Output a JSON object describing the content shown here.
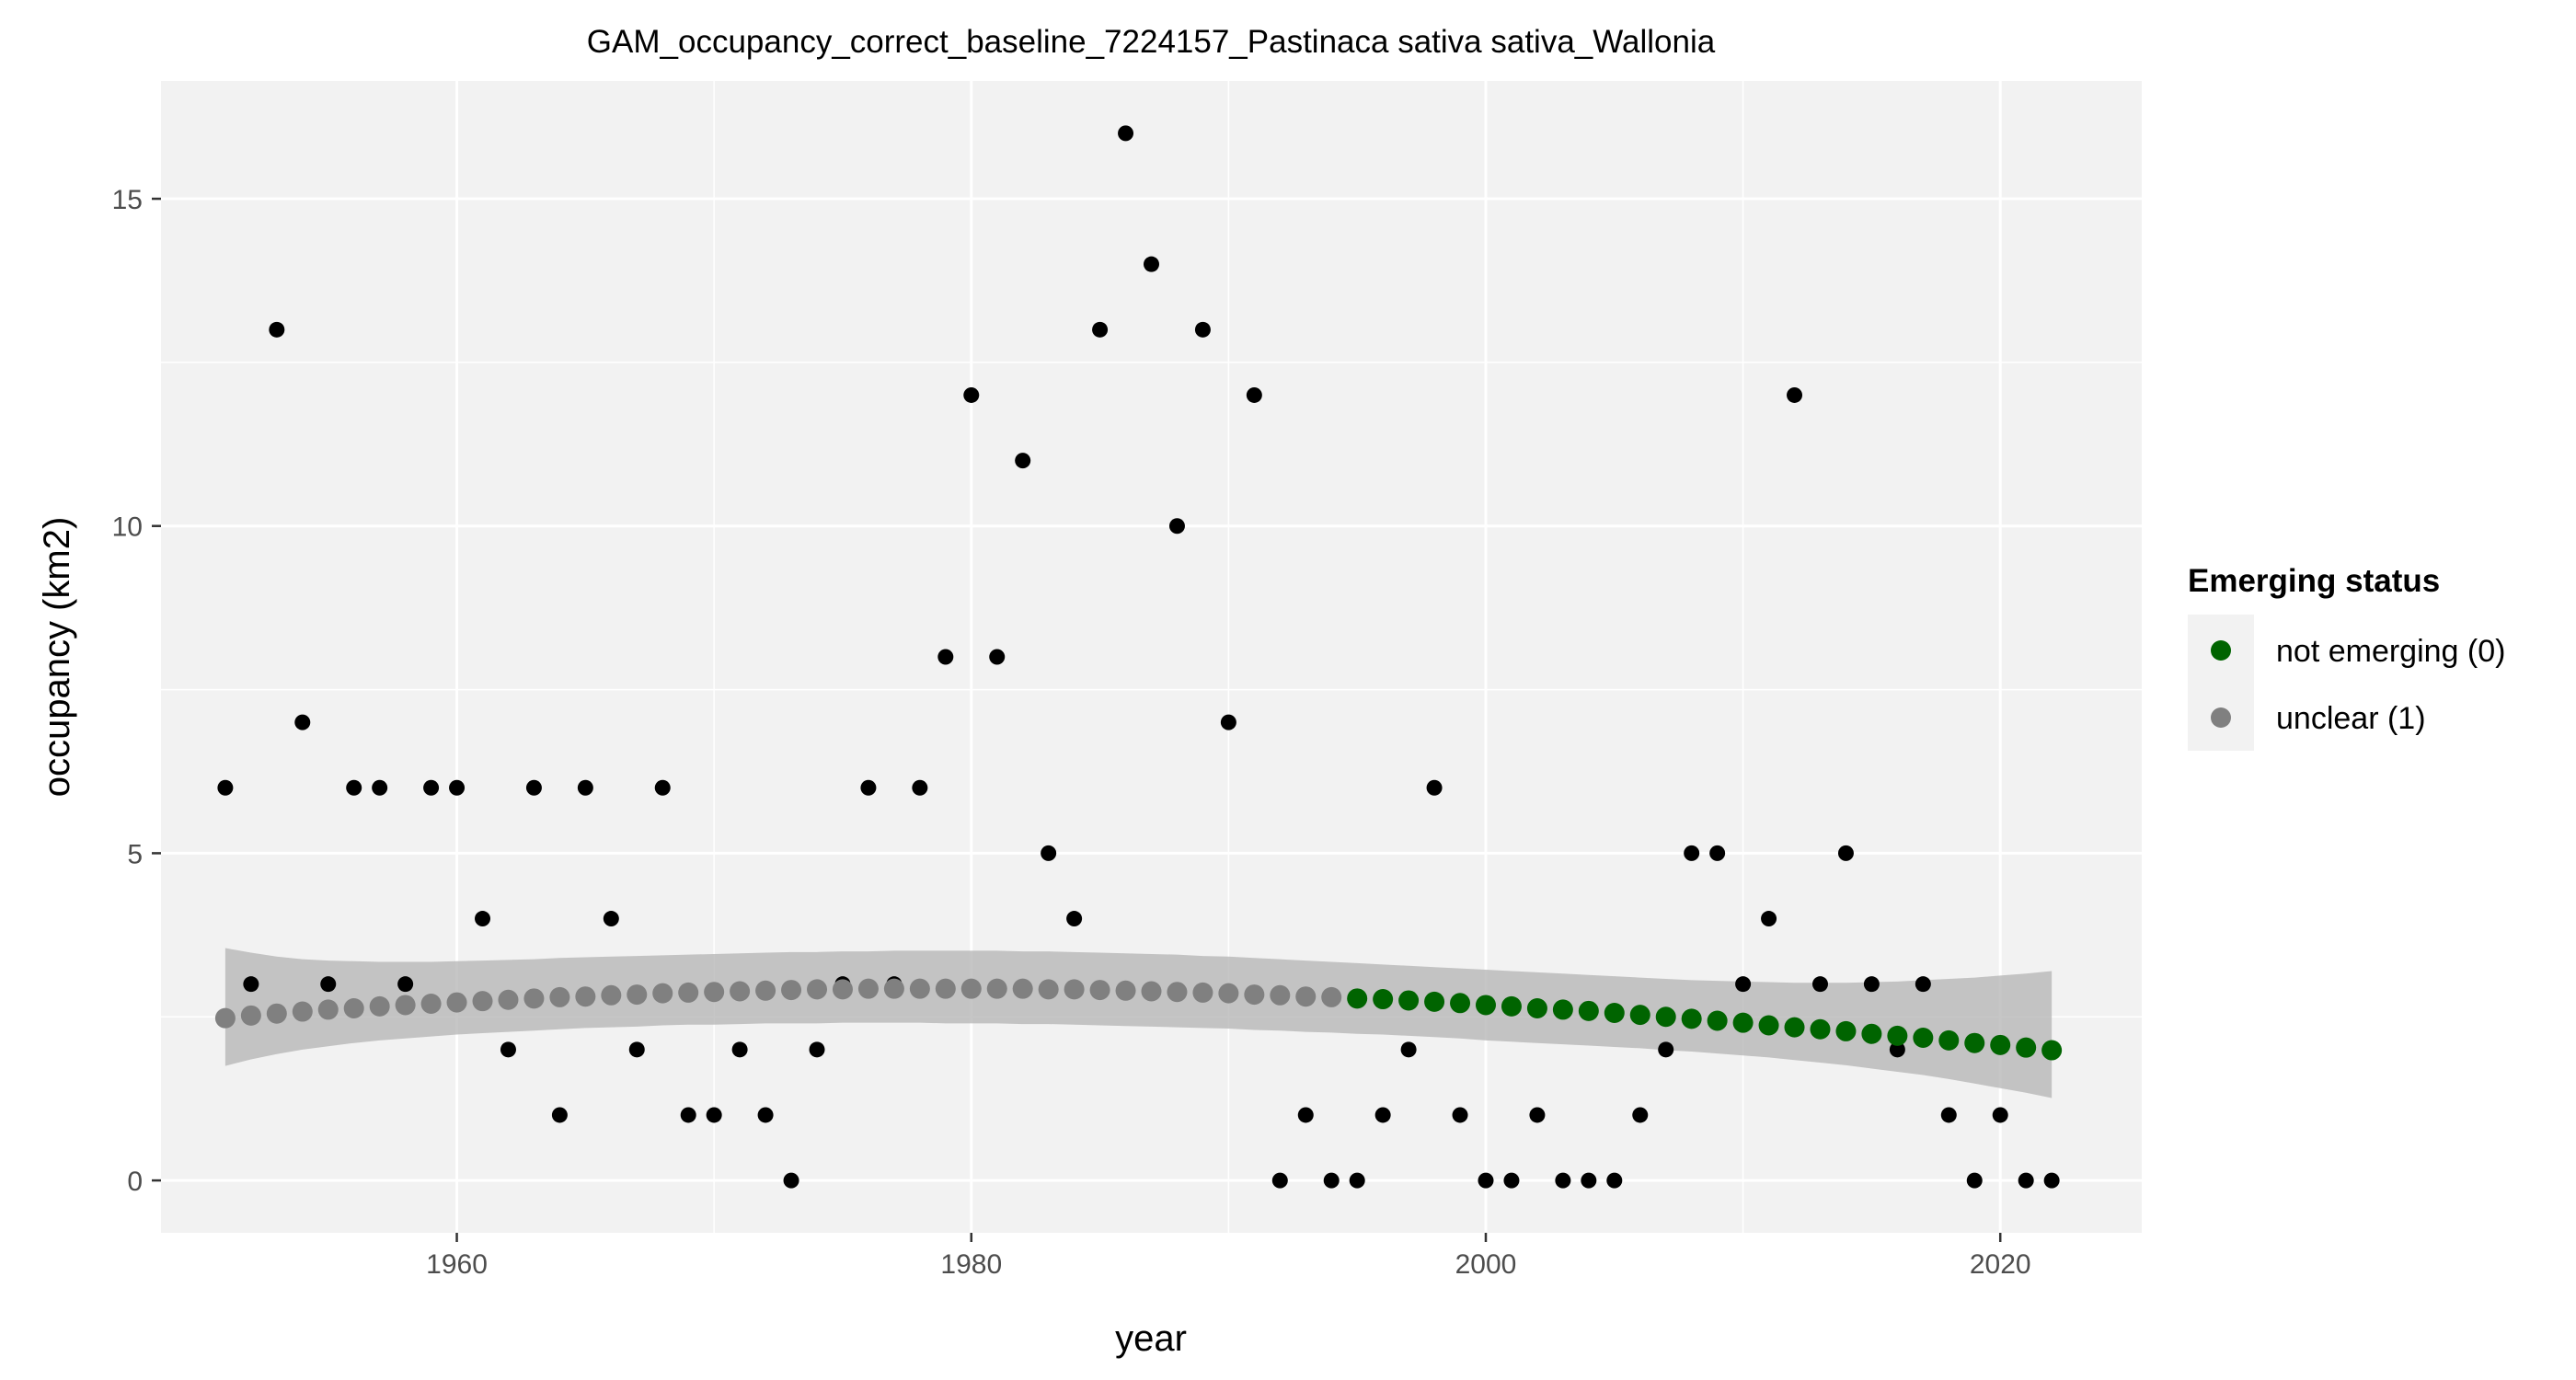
{
  "chart_data": {
    "type": "scatter",
    "title": "GAM_occupancy_correct_baseline_7224157_Pastinaca sativa sativa_Wallonia",
    "xlabel": "year",
    "ylabel": "occupancy (km2)",
    "xlim": [
      1948.5,
      2025.5
    ],
    "ylim": [
      -0.8,
      16.8
    ],
    "xticks": [
      1960,
      1980,
      2000,
      2020
    ],
    "yticks": [
      0,
      5,
      10,
      15
    ],
    "grid": true,
    "legend": {
      "title": "Emerging status",
      "position": "right",
      "items": [
        {
          "label": "not emerging (0)",
          "color": "#006400"
        },
        {
          "label": "unclear (1)",
          "color": "#808080"
        }
      ]
    },
    "colors": {
      "panel": "#f2f2f2",
      "grid": "#ffffff",
      "observed": "#000000",
      "ribbon": "#b3b3b3",
      "not_emerging": "#006400",
      "unclear": "#808080"
    },
    "observed": {
      "x": [
        1951,
        1952,
        1953,
        1954,
        1955,
        1956,
        1957,
        1958,
        1959,
        1960,
        1961,
        1962,
        1963,
        1964,
        1965,
        1966,
        1967,
        1968,
        1969,
        1970,
        1971,
        1972,
        1973,
        1974,
        1975,
        1976,
        1977,
        1978,
        1979,
        1980,
        1981,
        1982,
        1983,
        1984,
        1985,
        1986,
        1987,
        1988,
        1989,
        1990,
        1991,
        1992,
        1993,
        1994,
        1995,
        1996,
        1997,
        1998,
        1999,
        2000,
        2001,
        2002,
        2003,
        2004,
        2005,
        2006,
        2007,
        2008,
        2009,
        2010,
        2011,
        2012,
        2013,
        2014,
        2015,
        2016,
        2017,
        2018,
        2019,
        2020,
        2021,
        2022
      ],
      "y": [
        6,
        3,
        13,
        7,
        3,
        6,
        6,
        3,
        6,
        6,
        4,
        2,
        6,
        1,
        6,
        4,
        2,
        6,
        1,
        1,
        2,
        1,
        0,
        2,
        3,
        6,
        3,
        6,
        8,
        12,
        8,
        11,
        5,
        4,
        13,
        16,
        14,
        10,
        13,
        7,
        12,
        0,
        1,
        0,
        0,
        1,
        2,
        6,
        1,
        0,
        0,
        1,
        0,
        0,
        0,
        1,
        2,
        5,
        5,
        3,
        4,
        12,
        3,
        5,
        3,
        2,
        3,
        1,
        0,
        1,
        0,
        0
      ]
    },
    "fitted": {
      "x": [
        1951,
        1952,
        1953,
        1954,
        1955,
        1956,
        1957,
        1958,
        1959,
        1960,
        1961,
        1962,
        1963,
        1964,
        1965,
        1966,
        1967,
        1968,
        1969,
        1970,
        1971,
        1972,
        1973,
        1974,
        1975,
        1976,
        1977,
        1978,
        1979,
        1980,
        1981,
        1982,
        1983,
        1984,
        1985,
        1986,
        1987,
        1988,
        1989,
        1990,
        1991,
        1992,
        1993,
        1994,
        1995,
        1996,
        1997,
        1998,
        1999,
        2000,
        2001,
        2002,
        2003,
        2004,
        2005,
        2006,
        2007,
        2008,
        2009,
        2010,
        2011,
        2012,
        2013,
        2014,
        2015,
        2016,
        2017,
        2018,
        2019,
        2020,
        2021,
        2022
      ],
      "y": [
        2.48,
        2.52,
        2.55,
        2.58,
        2.61,
        2.63,
        2.66,
        2.68,
        2.7,
        2.72,
        2.74,
        2.76,
        2.78,
        2.8,
        2.81,
        2.83,
        2.84,
        2.86,
        2.87,
        2.88,
        2.89,
        2.9,
        2.91,
        2.92,
        2.92,
        2.93,
        2.93,
        2.93,
        2.93,
        2.93,
        2.93,
        2.93,
        2.92,
        2.92,
        2.91,
        2.9,
        2.89,
        2.88,
        2.87,
        2.86,
        2.84,
        2.83,
        2.81,
        2.8,
        2.78,
        2.77,
        2.75,
        2.73,
        2.71,
        2.68,
        2.66,
        2.63,
        2.61,
        2.59,
        2.56,
        2.53,
        2.5,
        2.47,
        2.44,
        2.41,
        2.37,
        2.34,
        2.31,
        2.28,
        2.24,
        2.21,
        2.18,
        2.14,
        2.1,
        2.07,
        2.03,
        1.99
      ],
      "lower": [
        1.75,
        1.85,
        1.93,
        2.0,
        2.05,
        2.1,
        2.14,
        2.17,
        2.2,
        2.23,
        2.25,
        2.27,
        2.29,
        2.31,
        2.33,
        2.34,
        2.35,
        2.37,
        2.38,
        2.38,
        2.39,
        2.4,
        2.4,
        2.4,
        2.41,
        2.41,
        2.41,
        2.41,
        2.4,
        2.4,
        2.4,
        2.39,
        2.39,
        2.38,
        2.37,
        2.36,
        2.35,
        2.34,
        2.33,
        2.32,
        2.3,
        2.29,
        2.27,
        2.26,
        2.24,
        2.23,
        2.21,
        2.19,
        2.17,
        2.14,
        2.12,
        2.1,
        2.08,
        2.06,
        2.04,
        2.02,
        1.99,
        1.97,
        1.94,
        1.91,
        1.88,
        1.84,
        1.8,
        1.76,
        1.71,
        1.66,
        1.61,
        1.55,
        1.48,
        1.41,
        1.34,
        1.26
      ],
      "upper": [
        3.55,
        3.48,
        3.42,
        3.38,
        3.36,
        3.35,
        3.34,
        3.34,
        3.34,
        3.35,
        3.36,
        3.37,
        3.38,
        3.4,
        3.41,
        3.42,
        3.43,
        3.44,
        3.45,
        3.46,
        3.47,
        3.48,
        3.49,
        3.49,
        3.5,
        3.5,
        3.51,
        3.51,
        3.51,
        3.51,
        3.51,
        3.5,
        3.5,
        3.49,
        3.48,
        3.47,
        3.46,
        3.45,
        3.43,
        3.42,
        3.4,
        3.38,
        3.36,
        3.34,
        3.32,
        3.3,
        3.28,
        3.26,
        3.24,
        3.22,
        3.2,
        3.18,
        3.16,
        3.14,
        3.12,
        3.1,
        3.08,
        3.06,
        3.05,
        3.04,
        3.03,
        3.02,
        3.02,
        3.02,
        3.03,
        3.04,
        3.06,
        3.08,
        3.1,
        3.13,
        3.16,
        3.2
      ],
      "status": [
        1,
        1,
        1,
        1,
        1,
        1,
        1,
        1,
        1,
        1,
        1,
        1,
        1,
        1,
        1,
        1,
        1,
        1,
        1,
        1,
        1,
        1,
        1,
        1,
        1,
        1,
        1,
        1,
        1,
        1,
        1,
        1,
        1,
        1,
        1,
        1,
        1,
        1,
        1,
        1,
        1,
        1,
        1,
        1,
        0,
        0,
        0,
        0,
        0,
        0,
        0,
        0,
        0,
        0,
        0,
        0,
        0,
        0,
        0,
        0,
        0,
        0,
        0,
        0,
        0,
        0,
        0,
        0,
        0,
        0,
        0,
        0
      ]
    }
  }
}
